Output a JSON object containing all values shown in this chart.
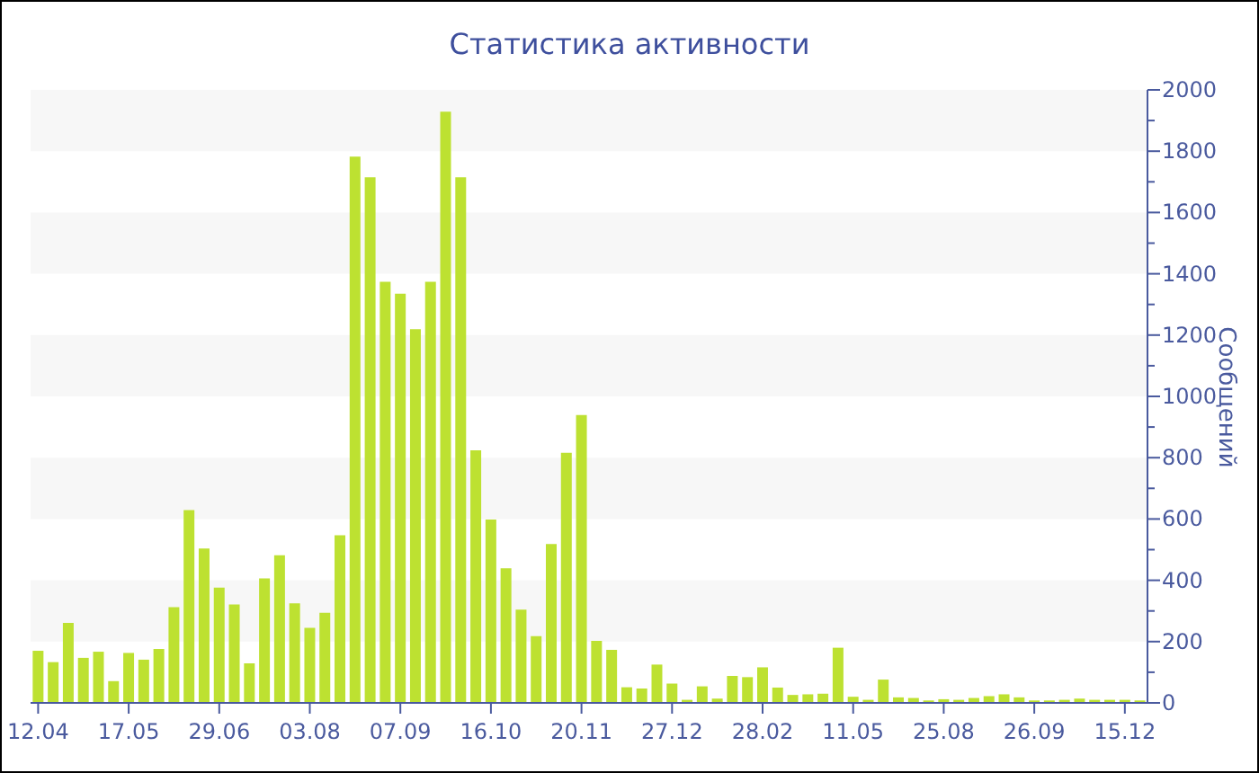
{
  "chart_data": {
    "type": "bar",
    "title": "Статистика активности",
    "ylabel": "Сообщений",
    "categories": [
      "12.04",
      null,
      null,
      null,
      null,
      null,
      "17.05",
      null,
      null,
      null,
      null,
      null,
      "29.06",
      null,
      null,
      null,
      null,
      null,
      "03.08",
      null,
      null,
      null,
      null,
      null,
      "07.09",
      null,
      null,
      null,
      null,
      null,
      "16.10",
      null,
      null,
      null,
      null,
      null,
      "20.11",
      null,
      null,
      null,
      null,
      null,
      "27.12",
      null,
      null,
      null,
      null,
      null,
      "28.02",
      null,
      null,
      null,
      null,
      null,
      "11.05",
      null,
      null,
      null,
      null,
      null,
      "25.08",
      null,
      null,
      null,
      null,
      null,
      "26.09",
      null,
      null,
      null,
      null,
      null,
      "15.12",
      null
    ],
    "values": [
      170,
      133,
      261,
      147,
      167,
      71,
      163,
      141,
      176,
      312,
      629,
      504,
      376,
      321,
      129,
      406,
      482,
      325,
      245,
      294,
      547,
      1782,
      1715,
      1374,
      1335,
      1219,
      1374,
      1929,
      1715,
      824,
      598,
      439,
      304,
      218,
      518,
      816,
      939,
      202,
      173,
      51,
      47,
      125,
      63,
      10,
      54,
      14,
      88,
      84,
      116,
      50,
      26,
      28,
      30,
      180,
      20,
      10,
      76,
      18,
      16,
      8,
      12,
      10,
      16,
      22,
      28,
      18,
      8,
      8,
      10,
      14,
      10,
      10,
      10,
      8
    ],
    "color": "#bde131",
    "ylim": [
      0,
      2000
    ],
    "yticks": [
      0,
      {
        "value": 100,
        "label": null
      },
      200,
      {
        "value": 300,
        "label": null
      },
      400,
      {
        "value": 500,
        "label": null
      },
      600,
      {
        "value": 700,
        "label": null
      },
      800,
      {
        "value": 900,
        "label": null
      },
      1000,
      {
        "value": 1100,
        "label": null
      },
      1200,
      {
        "value": 1300,
        "label": null
      },
      1400,
      {
        "value": 1500,
        "label": null
      },
      1600,
      {
        "value": 1700,
        "label": null
      },
      1800,
      {
        "value": 1900,
        "label": null
      },
      2000
    ],
    "bands": [
      {
        "axis": "y",
        "from": 200,
        "to": 400,
        "color": "#f7f7f7"
      },
      {
        "axis": "y",
        "from": 600,
        "to": 800,
        "color": "#f7f7f7"
      },
      {
        "axis": "y",
        "from": 1000,
        "to": 1200,
        "color": "#f7f7f7"
      },
      {
        "axis": "y",
        "from": 1400,
        "to": 1600,
        "color": "#f7f7f7"
      },
      {
        "axis": "y",
        "from": 1800,
        "to": 2000,
        "color": "#f7f7f7"
      }
    ],
    "grid": false
  }
}
